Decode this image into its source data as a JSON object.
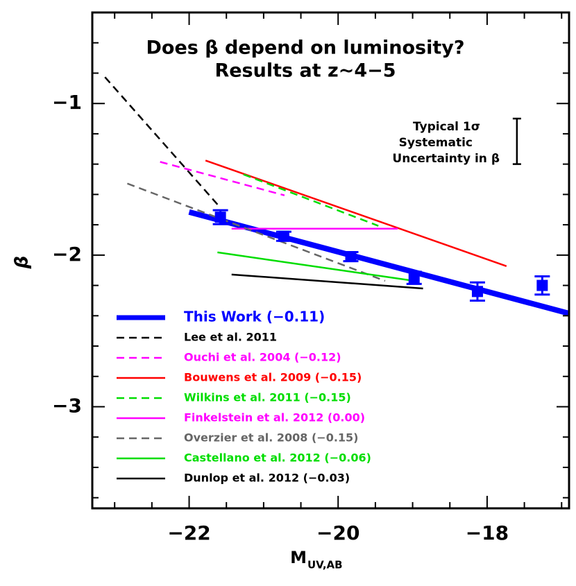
{
  "chart_data": {
    "type": "line",
    "title": [
      "Does β depend on luminosity?",
      "Results at z~4−5"
    ],
    "x_label": "M",
    "x_label_sub": "UV,AB",
    "y_label": "β",
    "xlim": [
      -23.3,
      -16.9
    ],
    "ylim": [
      -3.67,
      -0.4
    ],
    "xticks": [
      {
        "value": -22,
        "label": "−22"
      },
      {
        "value": -20,
        "label": "−20"
      },
      {
        "value": -18,
        "label": "−18"
      }
    ],
    "yticks": [
      {
        "value": -1,
        "label": "−1"
      },
      {
        "value": -2,
        "label": "−2"
      },
      {
        "value": -3,
        "label": "−3"
      }
    ],
    "xminorticks": [
      -23,
      -22.5,
      -21.5,
      -21,
      -20.5,
      -19.5,
      -19,
      -18.5,
      -17.5,
      -17
    ],
    "yminorticks": [
      -0.4,
      -0.6,
      -0.8,
      -1.2,
      -1.4,
      -1.6,
      -1.8,
      -2.2,
      -2.4,
      -2.6,
      -2.8,
      -3.2,
      -3.4,
      -3.6
    ],
    "series": [
      {
        "name": "This Work (−0.11)",
        "color": "#0000ff",
        "dashed": false,
        "thick": true,
        "x": [
          -22,
          -16.9
        ],
        "values": [
          -1.716,
          -2.385
        ]
      },
      {
        "name": "Lee et al. 2011",
        "color": "#000000",
        "dashed": true,
        "thick": false,
        "x": [
          -23.13,
          -21.58
        ],
        "values": [
          -0.826,
          -1.688
        ]
      },
      {
        "name": "Ouchi et al. 2004 (−0.12)",
        "color": "#ff00ff",
        "dashed": true,
        "thick": false,
        "x": [
          -22.39,
          -20.72
        ],
        "values": [
          -1.385,
          -1.606
        ]
      },
      {
        "name": "Bouwens et al. 2009 (−0.15)",
        "color": "#ff0000",
        "dashed": false,
        "thick": false,
        "x": [
          -21.78,
          -17.74
        ],
        "values": [
          -1.376,
          -2.073
        ]
      },
      {
        "name": "Wilkins et al. 2011 (−0.15)",
        "color": "#00dd00",
        "dashed": true,
        "thick": false,
        "x": [
          -21.27,
          -19.46
        ],
        "values": [
          -1.468,
          -1.807
        ]
      },
      {
        "name": "Finkelstein et al. 2012 (0.00)",
        "color": "#ff00ff",
        "dashed": false,
        "thick": false,
        "x": [
          -21.43,
          -19.2
        ],
        "values": [
          -1.826,
          -1.826
        ]
      },
      {
        "name": "Overzier et al. 2008 (−0.15)",
        "color": "#666666",
        "dashed": true,
        "thick": false,
        "x": [
          -22.83,
          -19.37
        ],
        "values": [
          -1.528,
          -2.17
        ]
      },
      {
        "name": "Castellano et al. 2012 (−0.06)",
        "color": "#00dd00",
        "dashed": false,
        "thick": false,
        "x": [
          -21.62,
          -18.98
        ],
        "values": [
          -1.982,
          -2.17
        ]
      },
      {
        "name": "Dunlop et al. 2012 (−0.03)",
        "color": "#000000",
        "dashed": false,
        "thick": false,
        "x": [
          -21.43,
          -18.86
        ],
        "values": [
          -2.128,
          -2.22
        ]
      }
    ],
    "points": {
      "color": "#0000ff",
      "x": [
        -21.58,
        -20.73,
        -19.83,
        -18.98,
        -18.13,
        -17.26
      ],
      "values": [
        -1.75,
        -1.876,
        -2.01,
        -2.15,
        -2.24,
        -2.2
      ],
      "errors": [
        0.046,
        0.03,
        0.03,
        0.04,
        0.06,
        0.06
      ]
    },
    "annotation": {
      "lines": [
        "Typical 1σ",
        "Systematic",
        "Uncertainty in β"
      ],
      "x": -17.6,
      "y": -1.25,
      "error": 0.15
    }
  }
}
